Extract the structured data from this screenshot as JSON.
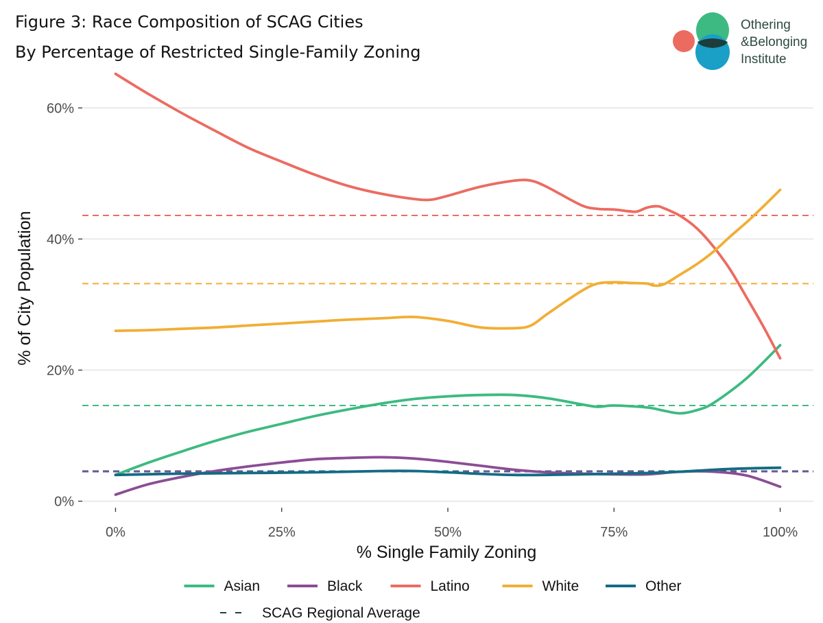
{
  "chart_data": {
    "type": "line",
    "title": "Figure 3: Race Composition of SCAG Cities",
    "subtitle": "By Percentage of Restricted Single-Family Zoning",
    "xlabel": "% Single Family Zoning",
    "ylabel": "% of City Population",
    "xlim": [
      -5,
      105
    ],
    "ylim": [
      -1,
      66
    ],
    "x_ticks": [
      0,
      25,
      50,
      75,
      100
    ],
    "x_tick_labels": [
      "0%",
      "25%",
      "50%",
      "75%",
      "100%"
    ],
    "y_ticks": [
      0,
      20,
      40,
      60
    ],
    "y_tick_labels": [
      "0%",
      "20%",
      "40%",
      "60%"
    ],
    "grid": "horizontal",
    "legend_position": "bottom",
    "series": [
      {
        "name": "Asian",
        "color": "#3dba81",
        "x": [
          0,
          5,
          10,
          15,
          20,
          25,
          30,
          35,
          40,
          45,
          50,
          55,
          60,
          65,
          70,
          72.5,
          75,
          80,
          82.5,
          85,
          87.5,
          90,
          95,
          100
        ],
        "y": [
          4.0,
          5.9,
          7.6,
          9.2,
          10.6,
          11.8,
          13.0,
          14.0,
          14.9,
          15.6,
          16.0,
          16.2,
          16.2,
          15.7,
          14.8,
          14.4,
          14.6,
          14.3,
          13.8,
          13.4,
          13.9,
          15.0,
          18.8,
          23.8
        ]
      },
      {
        "name": "Black",
        "color": "#8b4d95",
        "x": [
          0,
          5,
          10,
          15,
          20,
          25,
          30,
          35,
          40,
          45,
          50,
          55,
          60,
          65,
          70,
          75,
          80,
          85,
          90,
          95,
          100
        ],
        "y": [
          1.0,
          2.6,
          3.7,
          4.6,
          5.3,
          5.9,
          6.4,
          6.6,
          6.7,
          6.5,
          6.0,
          5.4,
          4.8,
          4.4,
          4.2,
          4.1,
          4.1,
          4.5,
          4.5,
          3.9,
          2.2
        ]
      },
      {
        "name": "Latino",
        "color": "#ec6b61",
        "x": [
          0,
          5,
          10,
          15,
          20,
          25,
          30,
          35,
          40,
          45,
          47.5,
          50,
          55,
          60,
          62.5,
          65,
          70,
          72.5,
          75,
          77.5,
          78.5,
          80,
          81.5,
          82.5,
          85,
          87.5,
          90,
          92.5,
          95,
          97.5,
          100
        ],
        "y": [
          65.2,
          62.1,
          59.2,
          56.5,
          53.9,
          51.8,
          49.8,
          48.1,
          46.9,
          46.1,
          46.0,
          46.6,
          48.0,
          48.9,
          48.9,
          47.9,
          45.2,
          44.6,
          44.5,
          44.2,
          44.2,
          44.8,
          45.0,
          44.7,
          43.5,
          41.6,
          38.8,
          35.3,
          31.0,
          26.6,
          21.8
        ]
      },
      {
        "name": "White",
        "color": "#f1ae35",
        "x": [
          0,
          5,
          10,
          15,
          20,
          25,
          30,
          35,
          40,
          45,
          50,
          55,
          60,
          62.5,
          65,
          70,
          72.5,
          75,
          77.5,
          80,
          81,
          82.5,
          85,
          87.5,
          90,
          92.5,
          95,
          97.5,
          100
        ],
        "y": [
          26.0,
          26.1,
          26.3,
          26.5,
          26.8,
          27.1,
          27.4,
          27.7,
          27.9,
          28.1,
          27.5,
          26.5,
          26.4,
          26.8,
          28.6,
          32.0,
          33.2,
          33.4,
          33.3,
          33.2,
          32.9,
          33.1,
          34.6,
          36.2,
          38.1,
          40.4,
          42.6,
          45.0,
          47.5
        ]
      },
      {
        "name": "Other",
        "color": "#136b84",
        "x": [
          0,
          10,
          20,
          30,
          40,
          45,
          50,
          60,
          70,
          80,
          85,
          90,
          95,
          100
        ],
        "y": [
          4.0,
          4.2,
          4.3,
          4.4,
          4.6,
          4.6,
          4.4,
          4.0,
          4.1,
          4.3,
          4.5,
          4.8,
          5.0,
          5.1
        ]
      }
    ],
    "regional_averages_label": "SCAG Regional Average",
    "regional_averages": [
      {
        "series": "Latino",
        "value": 43.6,
        "color": "#ec6b61"
      },
      {
        "series": "White",
        "value": 33.2,
        "color": "#f1ae35"
      },
      {
        "series": "Asian",
        "value": 14.6,
        "color": "#3dba81"
      },
      {
        "series": "Other",
        "value": 4.6,
        "color": "#136b84"
      },
      {
        "series": "Black",
        "value": 4.5,
        "color": "#8b4d95"
      }
    ]
  },
  "logo": {
    "line1": "Othering",
    "line2": "&Belonging",
    "line3": "Institute",
    "colors": {
      "green": "#3dba81",
      "blue": "#1a9fc7",
      "red": "#ec6b61",
      "overlap": "#1d3d3a"
    }
  }
}
